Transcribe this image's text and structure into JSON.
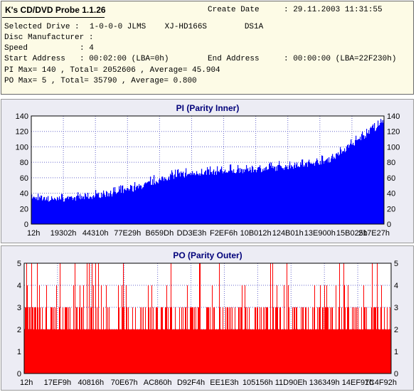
{
  "header": {
    "app_title": "K's CD/DVD Probe 1.1.26",
    "create_date_label": "Create Date",
    "create_date_value": ": 29.11.2003 11:31:55",
    "selected_drive_label": "Selected Drive :",
    "selected_drive_value": "1-0-0-0 JLMS    XJ-HD166S        DS1A",
    "disc_manufacturer_label": "Disc Manufacturer :",
    "disc_manufacturer_value": "",
    "speed_label": "Speed",
    "speed_value": ": 4",
    "start_address_label": "Start Address",
    "start_address_value": ": 00:02:00 (LBA=0h)",
    "end_address_label": "End Address",
    "end_address_value": ": 00:00:00 (LBA=22F230h)",
    "pi_summary": "PI Max= 140 , Total= 2052606 , Average= 45.904",
    "po_summary": "PO Max= 5 , Total= 35790 , Average= 0.800"
  },
  "chart_data": [
    {
      "type": "area",
      "title": "PI (Parity Inner)",
      "ylim": [
        0,
        140
      ],
      "yticks": [
        0,
        20,
        40,
        60,
        80,
        100,
        120,
        140
      ],
      "x_ticks": [
        "12h",
        "19302h",
        "44310h",
        "77E29h",
        "B659Dh",
        "DD3E3h",
        "F2EF6h",
        "10B012h",
        "124B01h",
        "13E900h",
        "15B025h",
        "217E27h"
      ],
      "grid": true,
      "series_color": "#0000ff",
      "envelope": [
        {
          "pos": 0.0,
          "base": 32,
          "peak": 41
        },
        {
          "pos": 0.05,
          "base": 28,
          "peak": 38
        },
        {
          "pos": 0.1,
          "base": 29,
          "peak": 40
        },
        {
          "pos": 0.15,
          "base": 31,
          "peak": 42
        },
        {
          "pos": 0.2,
          "base": 34,
          "peak": 46
        },
        {
          "pos": 0.25,
          "base": 37,
          "peak": 50
        },
        {
          "pos": 0.3,
          "base": 43,
          "peak": 57
        },
        {
          "pos": 0.35,
          "base": 51,
          "peak": 64
        },
        {
          "pos": 0.4,
          "base": 58,
          "peak": 71
        },
        {
          "pos": 0.45,
          "base": 61,
          "peak": 74
        },
        {
          "pos": 0.5,
          "base": 63,
          "peak": 76
        },
        {
          "pos": 0.55,
          "base": 64,
          "peak": 77
        },
        {
          "pos": 0.6,
          "base": 65,
          "peak": 78
        },
        {
          "pos": 0.65,
          "base": 67,
          "peak": 80
        },
        {
          "pos": 0.7,
          "base": 69,
          "peak": 82
        },
        {
          "pos": 0.75,
          "base": 72,
          "peak": 84
        },
        {
          "pos": 0.8,
          "base": 75,
          "peak": 87
        },
        {
          "pos": 0.85,
          "base": 80,
          "peak": 92
        },
        {
          "pos": 0.9,
          "base": 95,
          "peak": 108
        },
        {
          "pos": 0.95,
          "base": 112,
          "peak": 125
        },
        {
          "pos": 1.0,
          "base": 128,
          "peak": 140
        }
      ]
    },
    {
      "type": "bar",
      "title": "PO (Parity Outer)",
      "ylim": [
        0,
        5
      ],
      "yticks": [
        0,
        1,
        2,
        3,
        4,
        5
      ],
      "x_ticks": [
        "12h",
        "17EF9h",
        "40816h",
        "70E67h",
        "AC860h",
        "D92F4h",
        "EE1E3h",
        "105156h",
        "11D90Eh",
        "136349h",
        "14EF97h",
        "1C4F92h"
      ],
      "grid": true,
      "series_color": "#ff0000",
      "level_share": {
        "2": 0.62,
        "3": 0.27,
        "4": 0.07,
        "5": 0.04
      }
    }
  ]
}
